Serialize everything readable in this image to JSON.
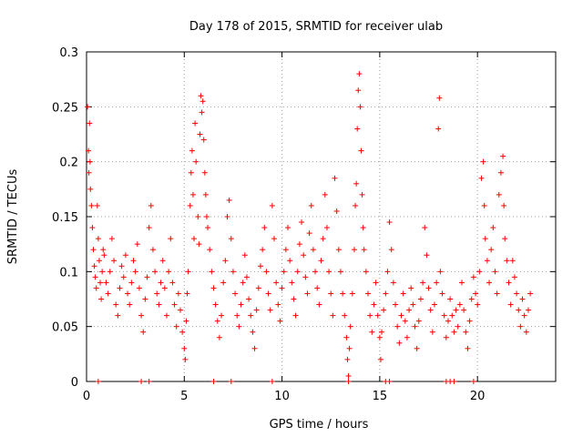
{
  "chart_data": {
    "type": "scatter",
    "title": "Day 178 of 2015, SRMTID for receiver ulab",
    "xlabel": "GPS time / hours",
    "ylabel": "SRMTID / TECUs",
    "xlim": [
      0,
      24
    ],
    "ylim": [
      0,
      0.3
    ],
    "xticks": [
      0,
      5,
      10,
      15,
      20
    ],
    "xtick_labels": [
      "0",
      "5",
      "10",
      "15",
      "20"
    ],
    "yticks": [
      0,
      0.05,
      0.1,
      0.15,
      0.2,
      0.25,
      0.3
    ],
    "ytick_labels": [
      "0",
      "0.05",
      "0.1",
      "0.15",
      "0.2",
      "0.25",
      "0.3"
    ],
    "grid": true,
    "marker": "+",
    "color": "#ff0000",
    "series": [
      {
        "name": "SRMTID",
        "points": [
          [
            0.05,
            0.25
          ],
          [
            0.1,
            0.21
          ],
          [
            0.12,
            0.19
          ],
          [
            0.15,
            0.235
          ],
          [
            0.18,
            0.2
          ],
          [
            0.2,
            0.175
          ],
          [
            0.25,
            0.16
          ],
          [
            0.3,
            0.14
          ],
          [
            0.35,
            0.12
          ],
          [
            0.4,
            0.105
          ],
          [
            0.45,
            0.095
          ],
          [
            0.5,
            0.085
          ],
          [
            0.55,
            0.16
          ],
          [
            0.6,
            0.13
          ],
          [
            0.65,
            0.11
          ],
          [
            0.7,
            0.09
          ],
          [
            0.75,
            0.075
          ],
          [
            0.8,
            0.1
          ],
          [
            0.85,
            0.12
          ],
          [
            0.9,
            0.115
          ],
          [
            1.0,
            0.09
          ],
          [
            1.1,
            0.08
          ],
          [
            1.2,
            0.1
          ],
          [
            1.3,
            0.13
          ],
          [
            1.4,
            0.11
          ],
          [
            1.5,
            0.07
          ],
          [
            1.6,
            0.06
          ],
          [
            1.7,
            0.085
          ],
          [
            1.8,
            0.105
          ],
          [
            1.9,
            0.095
          ],
          [
            2.0,
            0.115
          ],
          [
            2.1,
            0.08
          ],
          [
            2.2,
            0.07
          ],
          [
            2.3,
            0.09
          ],
          [
            2.4,
            0.11
          ],
          [
            2.5,
            0.1
          ],
          [
            2.6,
            0.125
          ],
          [
            2.7,
            0.085
          ],
          [
            2.8,
            0.06
          ],
          [
            2.9,
            0.045
          ],
          [
            3.0,
            0.075
          ],
          [
            3.1,
            0.095
          ],
          [
            3.2,
            0.14
          ],
          [
            3.3,
            0.16
          ],
          [
            3.4,
            0.12
          ],
          [
            3.5,
            0.1
          ],
          [
            3.6,
            0.08
          ],
          [
            3.7,
            0.07
          ],
          [
            3.8,
            0.09
          ],
          [
            3.9,
            0.11
          ],
          [
            4.0,
            0.085
          ],
          [
            4.1,
            0.06
          ],
          [
            4.2,
            0.1
          ],
          [
            4.3,
            0.13
          ],
          [
            4.4,
            0.09
          ],
          [
            4.5,
            0.07
          ],
          [
            4.6,
            0.05
          ],
          [
            4.7,
            0.08
          ],
          [
            4.8,
            0.065
          ],
          [
            4.9,
            0.045
          ],
          [
            5.0,
            0.03
          ],
          [
            5.05,
            0.02
          ],
          [
            5.1,
            0.055
          ],
          [
            5.15,
            0.08
          ],
          [
            5.2,
            0.1
          ],
          [
            5.3,
            0.16
          ],
          [
            5.35,
            0.19
          ],
          [
            5.4,
            0.21
          ],
          [
            5.45,
            0.17
          ],
          [
            5.5,
            0.13
          ],
          [
            5.55,
            0.235
          ],
          [
            5.6,
            0.2
          ],
          [
            5.7,
            0.15
          ],
          [
            5.75,
            0.125
          ],
          [
            5.8,
            0.225
          ],
          [
            5.85,
            0.26
          ],
          [
            5.9,
            0.245
          ],
          [
            5.95,
            0.255
          ],
          [
            6.0,
            0.22
          ],
          [
            6.05,
            0.19
          ],
          [
            6.1,
            0.17
          ],
          [
            6.15,
            0.15
          ],
          [
            6.2,
            0.14
          ],
          [
            6.3,
            0.12
          ],
          [
            6.4,
            0.1
          ],
          [
            6.5,
            0.085
          ],
          [
            6.6,
            0.07
          ],
          [
            6.7,
            0.055
          ],
          [
            6.8,
            0.04
          ],
          [
            6.9,
            0.06
          ],
          [
            7.0,
            0.09
          ],
          [
            7.1,
            0.11
          ],
          [
            7.2,
            0.15
          ],
          [
            7.3,
            0.165
          ],
          [
            7.4,
            0.13
          ],
          [
            7.5,
            0.1
          ],
          [
            7.6,
            0.08
          ],
          [
            7.7,
            0.06
          ],
          [
            7.8,
            0.05
          ],
          [
            7.9,
            0.07
          ],
          [
            8.0,
            0.09
          ],
          [
            8.1,
            0.115
          ],
          [
            8.2,
            0.095
          ],
          [
            8.3,
            0.075
          ],
          [
            8.4,
            0.06
          ],
          [
            8.5,
            0.045
          ],
          [
            8.6,
            0.03
          ],
          [
            8.7,
            0.065
          ],
          [
            8.8,
            0.085
          ],
          [
            8.9,
            0.105
          ],
          [
            9.0,
            0.12
          ],
          [
            9.1,
            0.14
          ],
          [
            9.2,
            0.1
          ],
          [
            9.3,
            0.08
          ],
          [
            9.4,
            0.065
          ],
          [
            9.5,
            0.16
          ],
          [
            9.6,
            0.13
          ],
          [
            9.7,
            0.09
          ],
          [
            9.8,
            0.07
          ],
          [
            9.9,
            0.055
          ],
          [
            10.0,
            0.085
          ],
          [
            10.1,
            0.1
          ],
          [
            10.2,
            0.12
          ],
          [
            10.3,
            0.14
          ],
          [
            10.4,
            0.11
          ],
          [
            10.5,
            0.09
          ],
          [
            10.6,
            0.075
          ],
          [
            10.7,
            0.06
          ],
          [
            10.8,
            0.1
          ],
          [
            10.9,
            0.125
          ],
          [
            11.0,
            0.145
          ],
          [
            11.1,
            0.115
          ],
          [
            11.2,
            0.095
          ],
          [
            11.3,
            0.08
          ],
          [
            11.4,
            0.135
          ],
          [
            11.5,
            0.16
          ],
          [
            11.6,
            0.12
          ],
          [
            11.7,
            0.1
          ],
          [
            11.8,
            0.085
          ],
          [
            11.9,
            0.07
          ],
          [
            12.0,
            0.11
          ],
          [
            12.1,
            0.13
          ],
          [
            12.2,
            0.17
          ],
          [
            12.3,
            0.14
          ],
          [
            12.4,
            0.1
          ],
          [
            12.5,
            0.08
          ],
          [
            12.6,
            0.06
          ],
          [
            12.7,
            0.185
          ],
          [
            12.8,
            0.155
          ],
          [
            12.9,
            0.12
          ],
          [
            13.0,
            0.1
          ],
          [
            13.1,
            0.08
          ],
          [
            13.2,
            0.06
          ],
          [
            13.3,
            0.04
          ],
          [
            13.35,
            0.02
          ],
          [
            13.4,
            0.005
          ],
          [
            13.45,
            0.03
          ],
          [
            13.5,
            0.05
          ],
          [
            13.6,
            0.08
          ],
          [
            13.7,
            0.12
          ],
          [
            13.75,
            0.16
          ],
          [
            13.8,
            0.18
          ],
          [
            13.85,
            0.23
          ],
          [
            13.9,
            0.265
          ],
          [
            13.95,
            0.28
          ],
          [
            14.0,
            0.25
          ],
          [
            14.05,
            0.21
          ],
          [
            14.1,
            0.17
          ],
          [
            14.15,
            0.14
          ],
          [
            14.2,
            0.12
          ],
          [
            14.3,
            0.1
          ],
          [
            14.4,
            0.08
          ],
          [
            14.5,
            0.06
          ],
          [
            14.6,
            0.045
          ],
          [
            14.7,
            0.07
          ],
          [
            14.8,
            0.09
          ],
          [
            14.9,
            0.06
          ],
          [
            15.0,
            0.04
          ],
          [
            15.05,
            0.02
          ],
          [
            15.1,
            0.045
          ],
          [
            15.2,
            0.065
          ],
          [
            15.3,
            0.08
          ],
          [
            15.4,
            0.1
          ],
          [
            15.5,
            0.145
          ],
          [
            15.6,
            0.12
          ],
          [
            15.7,
            0.09
          ],
          [
            15.8,
            0.07
          ],
          [
            15.9,
            0.05
          ],
          [
            16.0,
            0.035
          ],
          [
            16.1,
            0.06
          ],
          [
            16.2,
            0.08
          ],
          [
            16.3,
            0.055
          ],
          [
            16.4,
            0.04
          ],
          [
            16.5,
            0.065
          ],
          [
            16.6,
            0.085
          ],
          [
            16.7,
            0.07
          ],
          [
            16.8,
            0.05
          ],
          [
            16.9,
            0.03
          ],
          [
            17.0,
            0.055
          ],
          [
            17.1,
            0.075
          ],
          [
            17.2,
            0.09
          ],
          [
            17.3,
            0.14
          ],
          [
            17.4,
            0.115
          ],
          [
            17.5,
            0.085
          ],
          [
            17.6,
            0.065
          ],
          [
            17.7,
            0.045
          ],
          [
            17.8,
            0.07
          ],
          [
            17.9,
            0.09
          ],
          [
            18.0,
            0.23
          ],
          [
            18.05,
            0.258
          ],
          [
            18.1,
            0.1
          ],
          [
            18.2,
            0.08
          ],
          [
            18.3,
            0.06
          ],
          [
            18.4,
            0.04
          ],
          [
            18.5,
            0.055
          ],
          [
            18.6,
            0.075
          ],
          [
            18.7,
            0.06
          ],
          [
            18.8,
            0.045
          ],
          [
            18.9,
            0.065
          ],
          [
            19.0,
            0.05
          ],
          [
            19.1,
            0.07
          ],
          [
            19.2,
            0.09
          ],
          [
            19.3,
            0.065
          ],
          [
            19.4,
            0.045
          ],
          [
            19.5,
            0.03
          ],
          [
            19.6,
            0.055
          ],
          [
            19.7,
            0.075
          ],
          [
            19.8,
            0.095
          ],
          [
            19.9,
            0.08
          ],
          [
            20.0,
            0.07
          ],
          [
            20.1,
            0.1
          ],
          [
            20.2,
            0.185
          ],
          [
            20.3,
            0.2
          ],
          [
            20.35,
            0.16
          ],
          [
            20.4,
            0.13
          ],
          [
            20.5,
            0.11
          ],
          [
            20.6,
            0.09
          ],
          [
            20.7,
            0.12
          ],
          [
            20.8,
            0.14
          ],
          [
            20.9,
            0.1
          ],
          [
            21.0,
            0.08
          ],
          [
            21.1,
            0.17
          ],
          [
            21.2,
            0.19
          ],
          [
            21.3,
            0.205
          ],
          [
            21.35,
            0.16
          ],
          [
            21.4,
            0.13
          ],
          [
            21.5,
            0.11
          ],
          [
            21.6,
            0.09
          ],
          [
            21.7,
            0.07
          ],
          [
            21.8,
            0.11
          ],
          [
            21.9,
            0.095
          ],
          [
            22.0,
            0.08
          ],
          [
            22.1,
            0.065
          ],
          [
            22.2,
            0.05
          ],
          [
            22.3,
            0.075
          ],
          [
            22.4,
            0.06
          ],
          [
            22.5,
            0.045
          ],
          [
            22.6,
            0.065
          ],
          [
            22.7,
            0.08
          ]
        ]
      }
    ],
    "zero_markers_x": [
      0.6,
      2.8,
      3.2,
      6.5,
      7.4,
      9.5,
      13.4,
      15.3,
      15.5,
      18.4,
      18.6,
      18.8,
      19.8
    ]
  }
}
